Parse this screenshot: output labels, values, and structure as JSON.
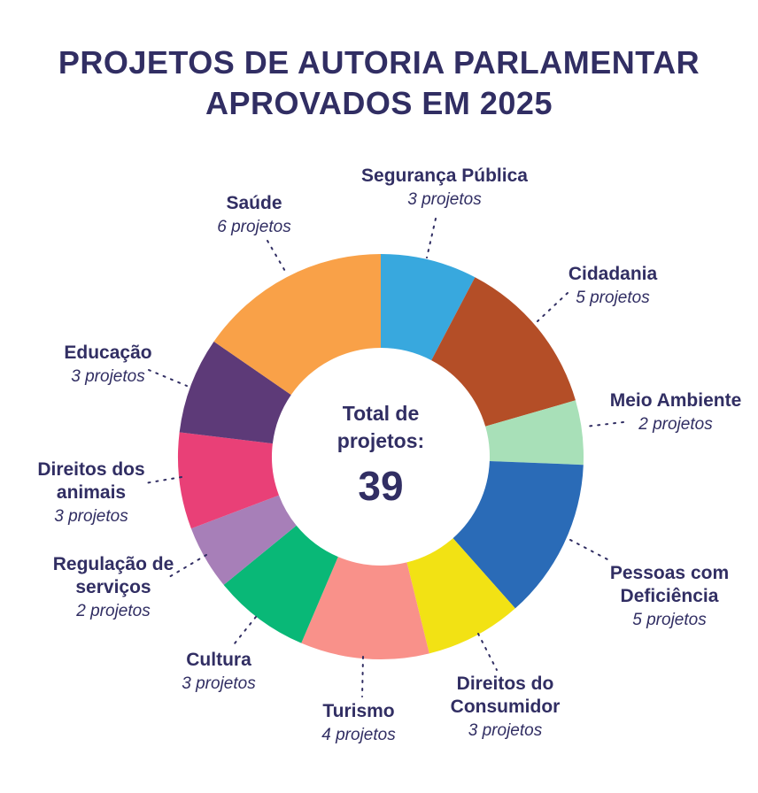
{
  "header": {
    "line1": "PROJETOS DE AUTORIA PARLAMENTAR",
    "line2": "APROVADOS EM 2025"
  },
  "chart_data": {
    "type": "pie",
    "subtype": "donut",
    "title": "Projetos de autoria parlamentar aprovados em 2025",
    "total": 39,
    "unit": "projetos",
    "center_label": "Total de projetos:",
    "center_value": "39",
    "text_color": "#312E63",
    "legend": "none, labels placed around donut with dashed leader lines",
    "segments": [
      {
        "label": "Segurança Pública",
        "value": 3,
        "sublabel": "3 projetos",
        "color": "#38A8DE"
      },
      {
        "label": "Cidadania",
        "value": 5,
        "sublabel": "5 projetos",
        "color": "#B44E27"
      },
      {
        "label": "Meio Ambiente",
        "value": 2,
        "sublabel": "2 projetos",
        "color": "#A8E0B8"
      },
      {
        "label": "Pessoas com Deficiência",
        "value": 5,
        "sublabel": "5 projetos",
        "color": "#2A6BB7"
      },
      {
        "label": "Direitos do Consumidor",
        "value": 3,
        "sublabel": "3 projetos",
        "color": "#F2E214"
      },
      {
        "label": "Turismo",
        "value": 4,
        "sublabel": "4 projetos",
        "color": "#F9918A"
      },
      {
        "label": "Cultura",
        "value": 3,
        "sublabel": "3 projetos",
        "color": "#09B877"
      },
      {
        "label": "Regulação de serviços",
        "value": 2,
        "sublabel": "2 projetos",
        "color": "#A77FB8"
      },
      {
        "label": "Direitos dos animais",
        "value": 3,
        "sublabel": "3 projetos",
        "color": "#E94077"
      },
      {
        "label": "Educação",
        "value": 3,
        "sublabel": "3 projetos",
        "color": "#5D3A78"
      },
      {
        "label": "Saúde",
        "value": 6,
        "sublabel": "6 projetos",
        "color": "#F9A148"
      }
    ]
  }
}
